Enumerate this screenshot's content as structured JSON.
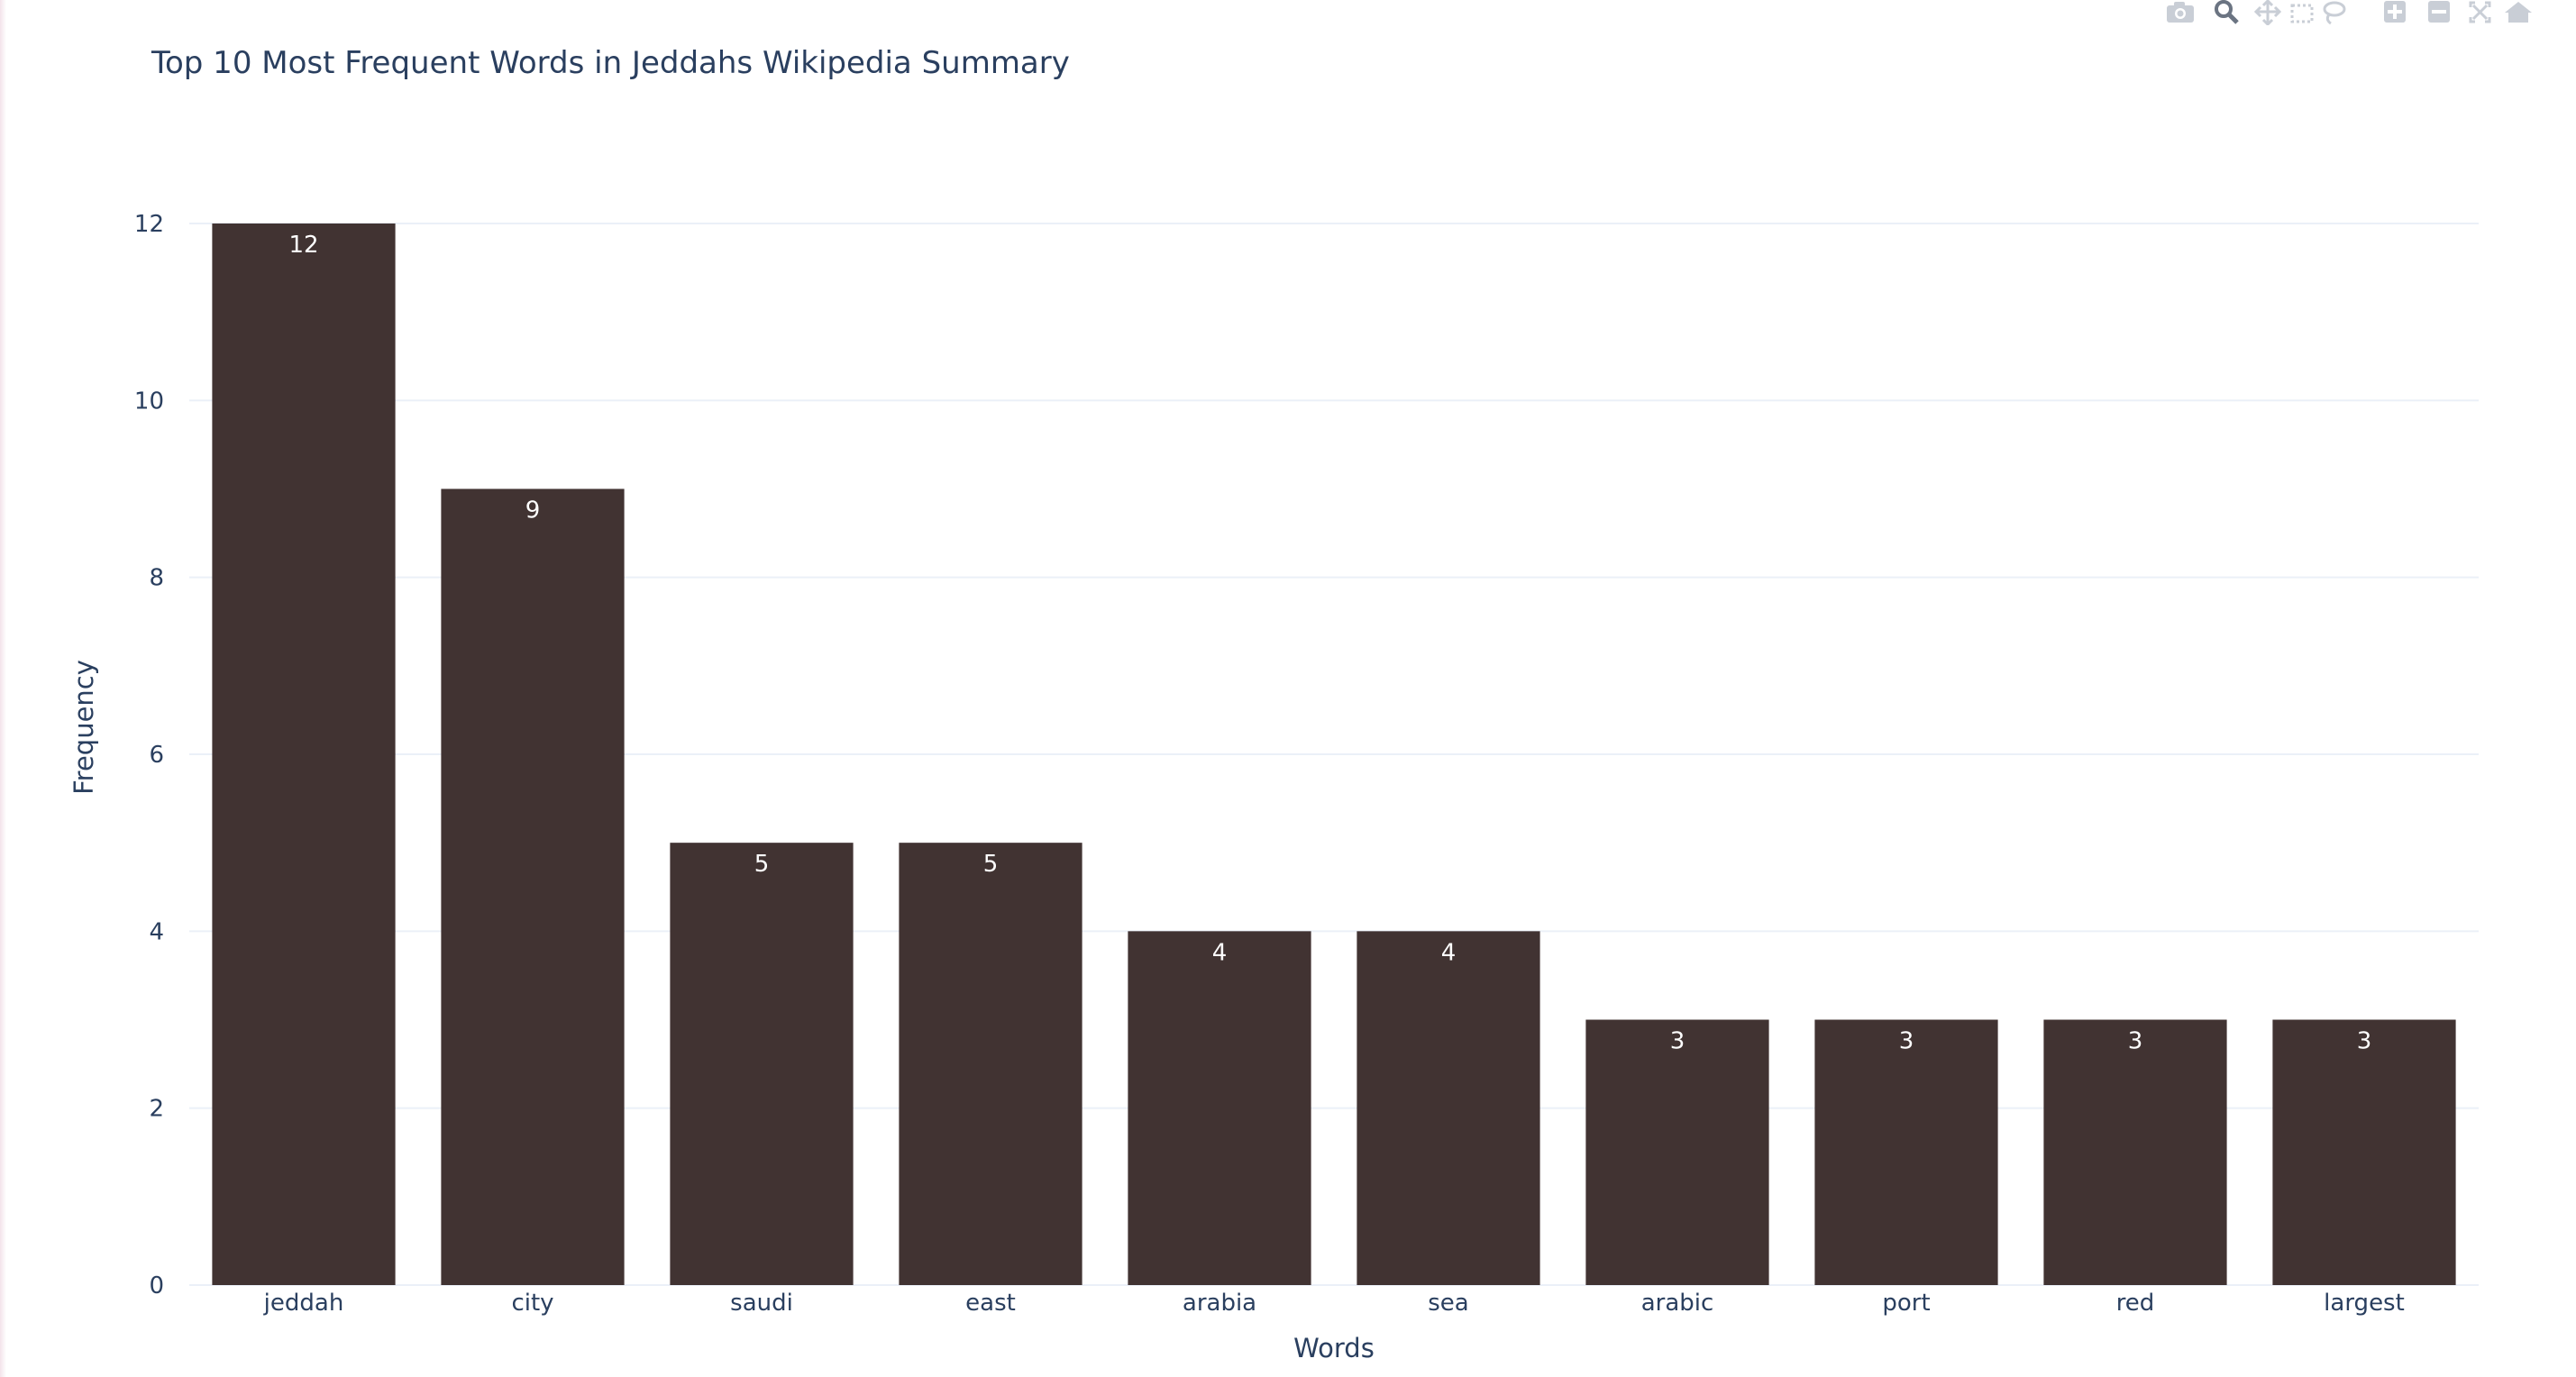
{
  "chart_data": {
    "type": "bar",
    "title": "Top 10 Most Frequent Words in Jeddahs Wikipedia Summary",
    "xlabel": "Words",
    "ylabel": "Frequency",
    "categories": [
      "jeddah",
      "city",
      "saudi",
      "east",
      "arabia",
      "sea",
      "arabic",
      "port",
      "red",
      "largest"
    ],
    "values": [
      12,
      9,
      5,
      5,
      4,
      4,
      3,
      3,
      3,
      3
    ],
    "ylim": [
      0,
      12
    ],
    "yticks": [
      0,
      2,
      4,
      6,
      8,
      10,
      12
    ],
    "grid": true,
    "bar_color": "#413332",
    "label_color": "#ffffff",
    "axis_text_color": "#2a3f5f",
    "grid_color": "#ebf0f8"
  },
  "modebar": {
    "icons": [
      "camera-icon",
      "zoom-icon",
      "pan-icon",
      "box-select-icon",
      "lasso-icon",
      "zoom-in-icon",
      "zoom-out-icon",
      "autoscale-icon",
      "reset-axes-icon"
    ]
  }
}
